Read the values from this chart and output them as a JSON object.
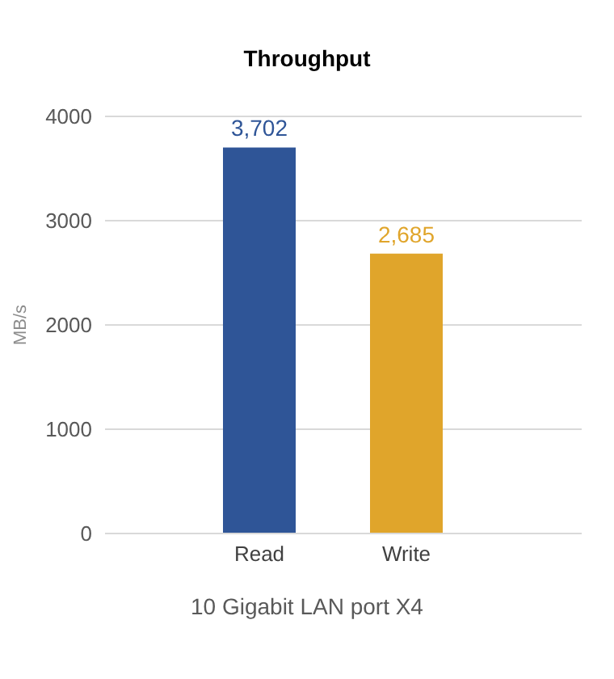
{
  "chart_data": {
    "type": "bar",
    "title": "Throughput",
    "xlabel": "10 Gigabit LAN port X4",
    "ylabel": "MB/s",
    "categories": [
      "Read",
      "Write"
    ],
    "values": [
      3702,
      2685
    ],
    "colors": [
      "#2f5597",
      "#e0a52b"
    ],
    "value_labels": [
      "3,702",
      "2,685"
    ],
    "ylim": [
      0,
      4000
    ],
    "yticks": [
      0,
      1000,
      2000,
      3000,
      4000
    ],
    "grid": "y"
  }
}
